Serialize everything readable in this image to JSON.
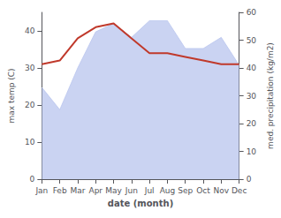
{
  "chart_data": {
    "type": "line",
    "xlabel": "date (month)",
    "ylabel": "max temp (C)",
    "y2label": "med. precipitation (kg/m2)",
    "categories": [
      "Jan",
      "Feb",
      "Mar",
      "Apr",
      "May",
      "Jun",
      "Jul",
      "Aug",
      "Sep",
      "Oct",
      "Nov",
      "Dec"
    ],
    "series": [
      {
        "type": "area",
        "axis": "y2",
        "color": "#b8c4ee",
        "values": [
          33,
          25,
          40,
          53,
          56,
          51,
          57,
          57,
          47,
          47,
          51,
          41
        ]
      },
      {
        "type": "line",
        "axis": "y",
        "color": "#c0392b",
        "values": [
          31,
          32,
          38,
          41,
          42,
          38,
          34,
          34,
          33,
          32,
          31,
          31
        ]
      }
    ],
    "ylim": [
      0,
      45
    ],
    "yticks": [
      0,
      10,
      20,
      30,
      40
    ],
    "y2lim": [
      0,
      60
    ],
    "y2ticks": [
      0,
      10,
      20,
      30,
      40,
      50,
      60
    ],
    "grid": false
  }
}
